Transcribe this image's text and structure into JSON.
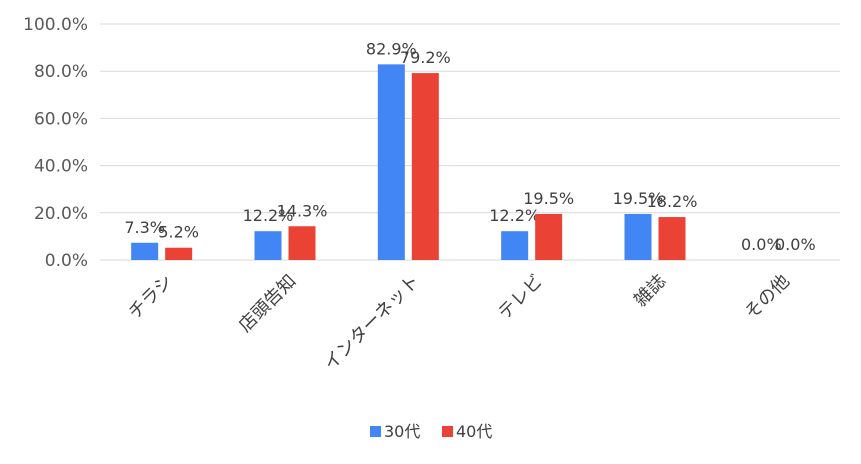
{
  "chart_data": {
    "type": "bar",
    "title": "",
    "xlabel": "",
    "ylabel": "",
    "categories": [
      "チラシ",
      "店頭告知",
      "インターネット",
      "テレビ",
      "雑誌",
      "その他"
    ],
    "series": [
      {
        "name": "30代",
        "color": "#4285f4",
        "values": [
          7.3,
          12.2,
          82.9,
          12.2,
          19.5,
          0.0
        ],
        "labels": [
          "7.3%",
          "12.2%",
          "82.9%",
          "12.2%",
          "19.5%",
          "0.0%"
        ]
      },
      {
        "name": "40代",
        "color": "#ea4335",
        "values": [
          5.2,
          14.3,
          79.2,
          19.5,
          18.2,
          0.0
        ],
        "labels": [
          "5.2%",
          "14.3%",
          "79.2%",
          "19.5%",
          "18.2%",
          "0.0%"
        ]
      }
    ],
    "ylim": [
      0,
      100
    ],
    "yticks": [
      0,
      20,
      40,
      60,
      80,
      100
    ],
    "ytick_labels": [
      "0.0%",
      "20.0%",
      "40.0%",
      "60.0%",
      "80.0%",
      "100.0%"
    ],
    "grid": true,
    "gridline_color": "#d9d9d9",
    "legend_position": "bottom"
  }
}
